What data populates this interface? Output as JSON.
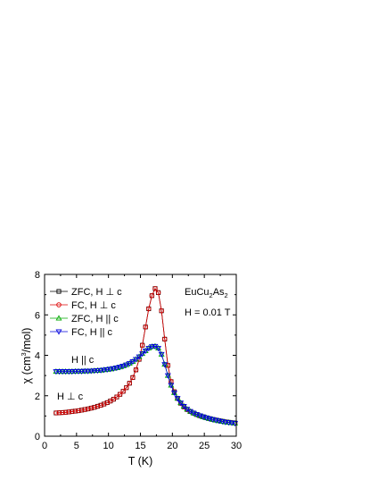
{
  "chart_data": {
    "type": "line",
    "xlabel": "T (K)",
    "ylabel_parts": {
      "main": "χ (cm",
      "sup": "3",
      "tail": "/mol)"
    },
    "xlim": [
      0,
      30
    ],
    "ylim": [
      0,
      8
    ],
    "x_ticks": [
      0,
      5,
      10,
      15,
      20,
      25,
      30
    ],
    "y_ticks": [
      0,
      2,
      4,
      6,
      8
    ],
    "grid": false,
    "legend_position": "top-left",
    "compound": {
      "a": "EuCu",
      "s1": "2",
      "b": "As",
      "s2": "2"
    },
    "field_label": "H = 0.01 T",
    "annotations": {
      "parallel": "H || c",
      "perp": "H ⊥ c"
    },
    "series": [
      {
        "name": "ZFC, H ⊥ c",
        "color": "#000000",
        "marker": "square",
        "x": [
          1.8,
          2.3,
          2.8,
          3.3,
          3.8,
          4.3,
          4.8,
          5.3,
          5.8,
          6.3,
          6.8,
          7.3,
          7.8,
          8.3,
          8.8,
          9.3,
          9.8,
          10.3,
          10.8,
          11.3,
          11.8,
          12.3,
          12.8,
          13.3,
          13.8,
          14.3,
          14.8,
          15.3,
          15.8,
          16.3,
          16.8,
          17.3,
          17.8,
          18.3,
          18.8,
          19.3,
          19.8,
          20.3,
          20.8,
          21.3,
          21.8,
          22.3,
          22.8,
          23.3,
          23.8,
          24.3,
          24.8,
          25.3,
          25.8,
          26.3,
          26.8,
          27.3,
          27.8,
          28.3,
          28.8,
          29.3,
          29.8
        ],
        "y": [
          1.15,
          1.16,
          1.17,
          1.18,
          1.2,
          1.22,
          1.24,
          1.26,
          1.29,
          1.32,
          1.35,
          1.39,
          1.43,
          1.48,
          1.53,
          1.59,
          1.66,
          1.74,
          1.83,
          1.94,
          2.07,
          2.22,
          2.4,
          2.62,
          2.9,
          3.28,
          3.8,
          4.5,
          5.4,
          6.3,
          6.95,
          7.3,
          7.1,
          6.2,
          4.8,
          3.5,
          2.7,
          2.2,
          1.87,
          1.63,
          1.45,
          1.32,
          1.22,
          1.14,
          1.07,
          1.01,
          0.96,
          0.91,
          0.87,
          0.83,
          0.8,
          0.77,
          0.74,
          0.71,
          0.69,
          0.67,
          0.65
        ]
      },
      {
        "name": "FC, H ⊥ c",
        "color": "#dd0000",
        "marker": "circle",
        "x": [
          1.8,
          2.3,
          2.8,
          3.3,
          3.8,
          4.3,
          4.8,
          5.3,
          5.8,
          6.3,
          6.8,
          7.3,
          7.8,
          8.3,
          8.8,
          9.3,
          9.8,
          10.3,
          10.8,
          11.3,
          11.8,
          12.3,
          12.8,
          13.3,
          13.8,
          14.3,
          14.8,
          15.3,
          15.8,
          16.3,
          16.8,
          17.3,
          17.8,
          18.3,
          18.8,
          19.3,
          19.8,
          20.3,
          20.8,
          21.3,
          21.8,
          22.3,
          22.8,
          23.3,
          23.8,
          24.3,
          24.8,
          25.3,
          25.8,
          26.3,
          26.8,
          27.3,
          27.8,
          28.3,
          28.8,
          29.3,
          29.8
        ],
        "y": [
          1.15,
          1.16,
          1.17,
          1.18,
          1.2,
          1.22,
          1.24,
          1.26,
          1.29,
          1.32,
          1.35,
          1.39,
          1.43,
          1.48,
          1.53,
          1.59,
          1.66,
          1.74,
          1.83,
          1.94,
          2.07,
          2.22,
          2.4,
          2.62,
          2.9,
          3.28,
          3.8,
          4.5,
          5.4,
          6.3,
          6.95,
          7.3,
          7.1,
          6.2,
          4.8,
          3.5,
          2.7,
          2.2,
          1.87,
          1.63,
          1.45,
          1.32,
          1.22,
          1.14,
          1.07,
          1.01,
          0.96,
          0.91,
          0.87,
          0.83,
          0.8,
          0.77,
          0.74,
          0.71,
          0.69,
          0.67,
          0.65
        ]
      },
      {
        "name": "ZFC, H || c",
        "color": "#00aa00",
        "marker": "triangle-up",
        "x": [
          1.8,
          2.3,
          2.8,
          3.3,
          3.8,
          4.3,
          4.8,
          5.3,
          5.8,
          6.3,
          6.8,
          7.3,
          7.8,
          8.3,
          8.8,
          9.3,
          9.8,
          10.3,
          10.8,
          11.3,
          11.8,
          12.3,
          12.8,
          13.3,
          13.8,
          14.3,
          14.8,
          15.3,
          15.8,
          16.3,
          16.8,
          17.3,
          17.8,
          18.3,
          18.8,
          19.3,
          19.8,
          20.3,
          20.8,
          21.3,
          21.8,
          22.3,
          22.8,
          23.3,
          23.8,
          24.3,
          24.8,
          25.3,
          25.8,
          26.3,
          26.8,
          27.3,
          27.8,
          28.3,
          28.8,
          29.3,
          29.8
        ],
        "y": [
          3.2,
          3.2,
          3.2,
          3.2,
          3.2,
          3.2,
          3.21,
          3.21,
          3.21,
          3.22,
          3.22,
          3.23,
          3.24,
          3.25,
          3.26,
          3.28,
          3.3,
          3.32,
          3.35,
          3.38,
          3.42,
          3.47,
          3.53,
          3.6,
          3.69,
          3.8,
          3.93,
          4.08,
          4.22,
          4.35,
          4.43,
          4.45,
          4.35,
          4.05,
          3.55,
          3.0,
          2.52,
          2.15,
          1.87,
          1.65,
          1.48,
          1.34,
          1.23,
          1.15,
          1.08,
          1.02,
          0.96,
          0.91,
          0.87,
          0.83,
          0.79,
          0.76,
          0.73,
          0.7,
          0.68,
          0.66,
          0.64
        ]
      },
      {
        "name": "FC, H || c",
        "color": "#0000dd",
        "marker": "triangle-down",
        "x": [
          1.8,
          2.3,
          2.8,
          3.3,
          3.8,
          4.3,
          4.8,
          5.3,
          5.8,
          6.3,
          6.8,
          7.3,
          7.8,
          8.3,
          8.8,
          9.3,
          9.8,
          10.3,
          10.8,
          11.3,
          11.8,
          12.3,
          12.8,
          13.3,
          13.8,
          14.3,
          14.8,
          15.3,
          15.8,
          16.3,
          16.8,
          17.3,
          17.8,
          18.3,
          18.8,
          19.3,
          19.8,
          20.3,
          20.8,
          21.3,
          21.8,
          22.3,
          22.8,
          23.3,
          23.8,
          24.3,
          24.8,
          25.3,
          25.8,
          26.3,
          26.8,
          27.3,
          27.8,
          28.3,
          28.8,
          29.3,
          29.8
        ],
        "y": [
          3.2,
          3.2,
          3.2,
          3.2,
          3.2,
          3.2,
          3.21,
          3.21,
          3.21,
          3.22,
          3.22,
          3.23,
          3.24,
          3.25,
          3.26,
          3.28,
          3.3,
          3.32,
          3.35,
          3.38,
          3.42,
          3.47,
          3.53,
          3.6,
          3.69,
          3.8,
          3.93,
          4.08,
          4.22,
          4.35,
          4.43,
          4.45,
          4.35,
          4.05,
          3.55,
          3.0,
          2.52,
          2.15,
          1.87,
          1.65,
          1.48,
          1.34,
          1.23,
          1.15,
          1.08,
          1.02,
          0.96,
          0.91,
          0.87,
          0.83,
          0.79,
          0.76,
          0.73,
          0.7,
          0.68,
          0.66,
          0.64
        ]
      }
    ]
  }
}
